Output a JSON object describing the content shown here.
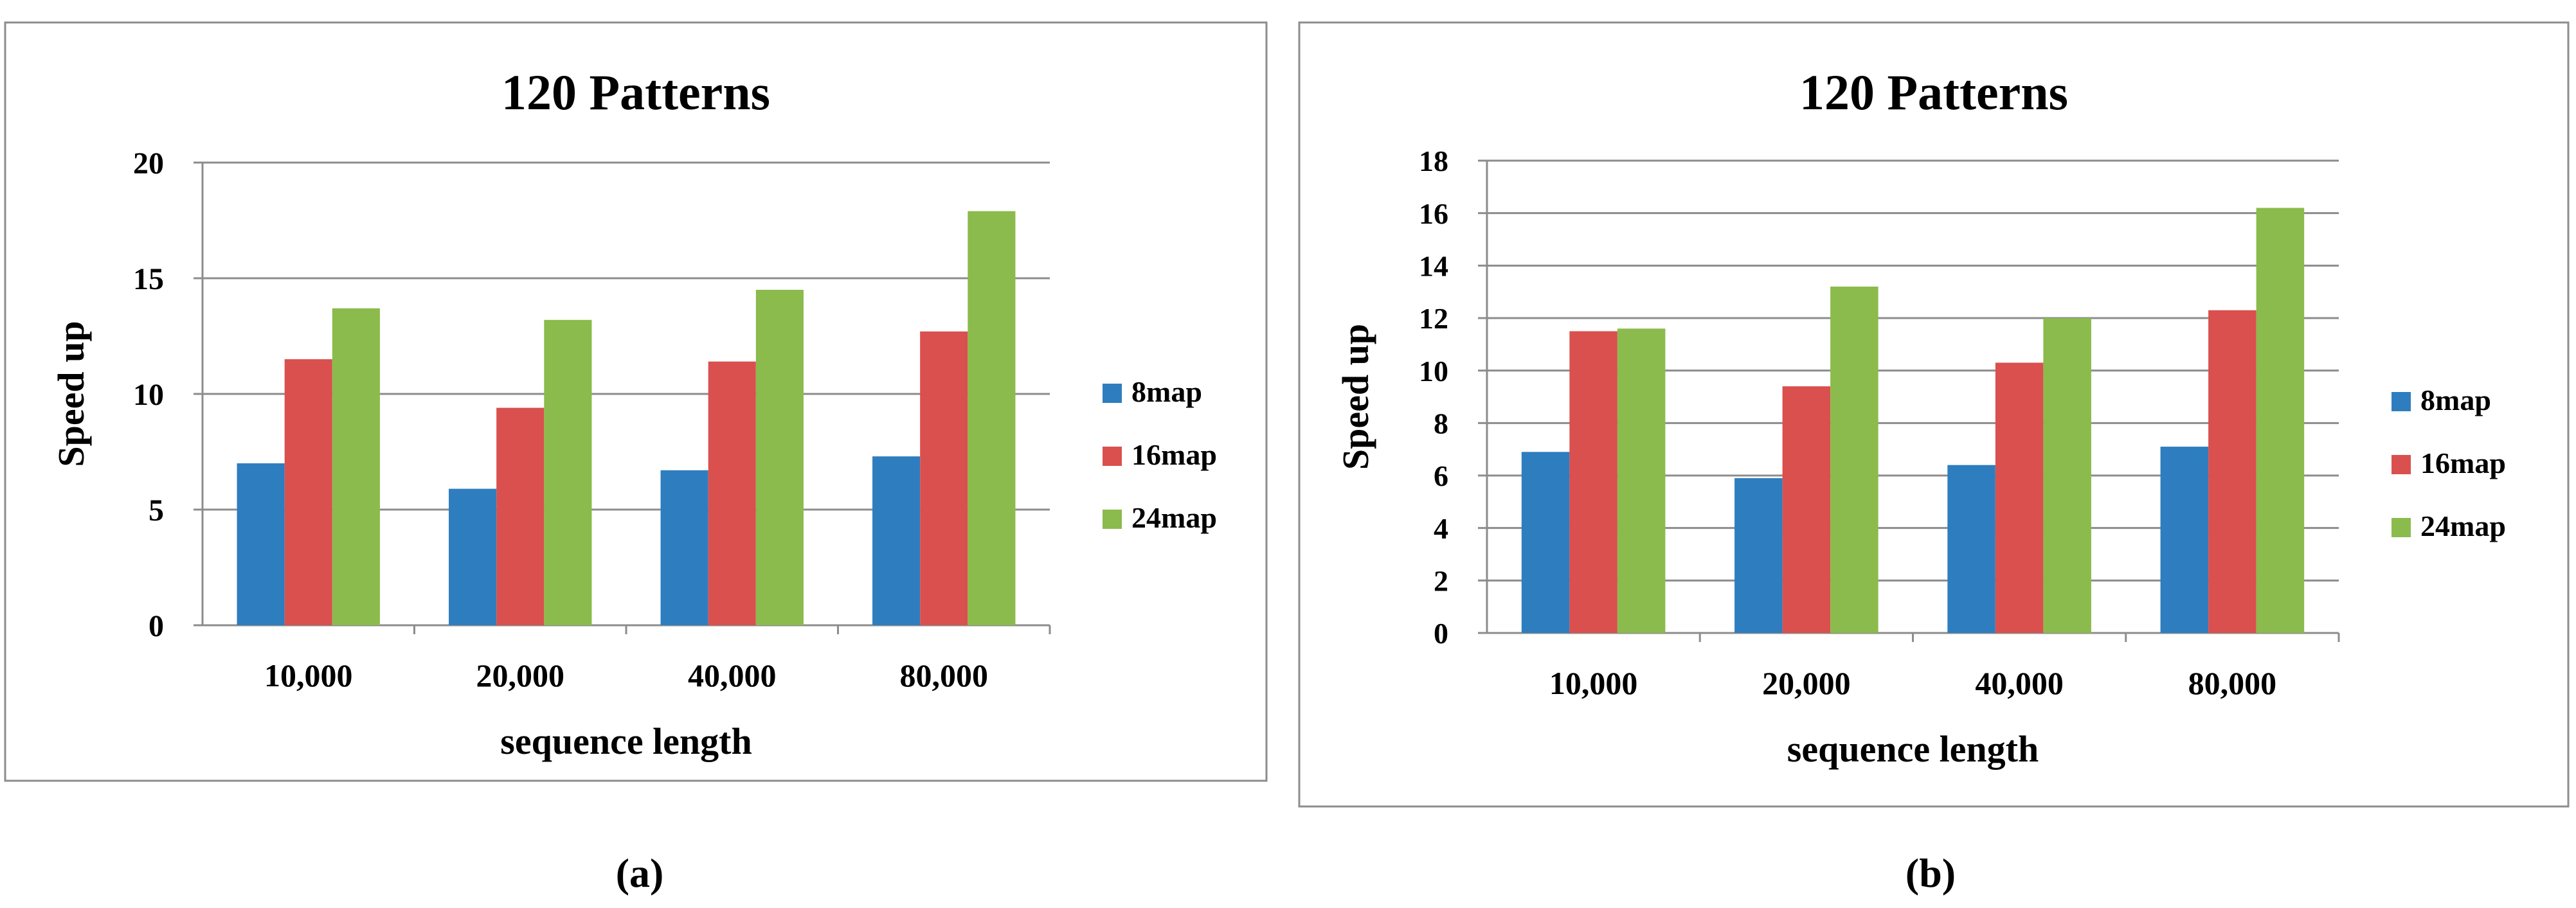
{
  "chart_data": [
    {
      "type": "bar",
      "panel_label": "(a)",
      "title": "120 Patterns",
      "xlabel": "sequence length",
      "ylabel": "Speed up",
      "categories": [
        "10,000",
        "20,000",
        "40,000",
        "80,000"
      ],
      "yticks": [
        "0",
        "5",
        "10",
        "15",
        "20"
      ],
      "ylim": [
        0,
        20
      ],
      "grid": true,
      "legend_position": "right",
      "series": [
        {
          "name": "8map",
          "color": "#2e7ebf",
          "values": [
            7.0,
            5.9,
            6.7,
            7.3
          ]
        },
        {
          "name": "16map",
          "color": "#d9504e",
          "values": [
            11.5,
            9.4,
            11.4,
            12.7
          ]
        },
        {
          "name": "24map",
          "color": "#8bbb4c",
          "values": [
            13.7,
            13.2,
            14.5,
            17.9
          ]
        }
      ]
    },
    {
      "type": "bar",
      "panel_label": "(b)",
      "title": "120 Patterns",
      "xlabel": "sequence length",
      "ylabel": "Speed up",
      "categories": [
        "10,000",
        "20,000",
        "40,000",
        "80,000"
      ],
      "yticks": [
        "0",
        "2",
        "4",
        "6",
        "8",
        "10",
        "12",
        "14",
        "16",
        "18"
      ],
      "ylim": [
        0,
        18
      ],
      "grid": true,
      "legend_position": "right",
      "series": [
        {
          "name": "8map",
          "color": "#2e7ebf",
          "values": [
            6.9,
            5.9,
            6.4,
            7.1
          ]
        },
        {
          "name": "16map",
          "color": "#d9504e",
          "values": [
            11.5,
            9.4,
            10.3,
            12.3
          ]
        },
        {
          "name": "24map",
          "color": "#8bbb4c",
          "values": [
            11.6,
            13.2,
            12.0,
            16.2
          ]
        }
      ]
    }
  ]
}
